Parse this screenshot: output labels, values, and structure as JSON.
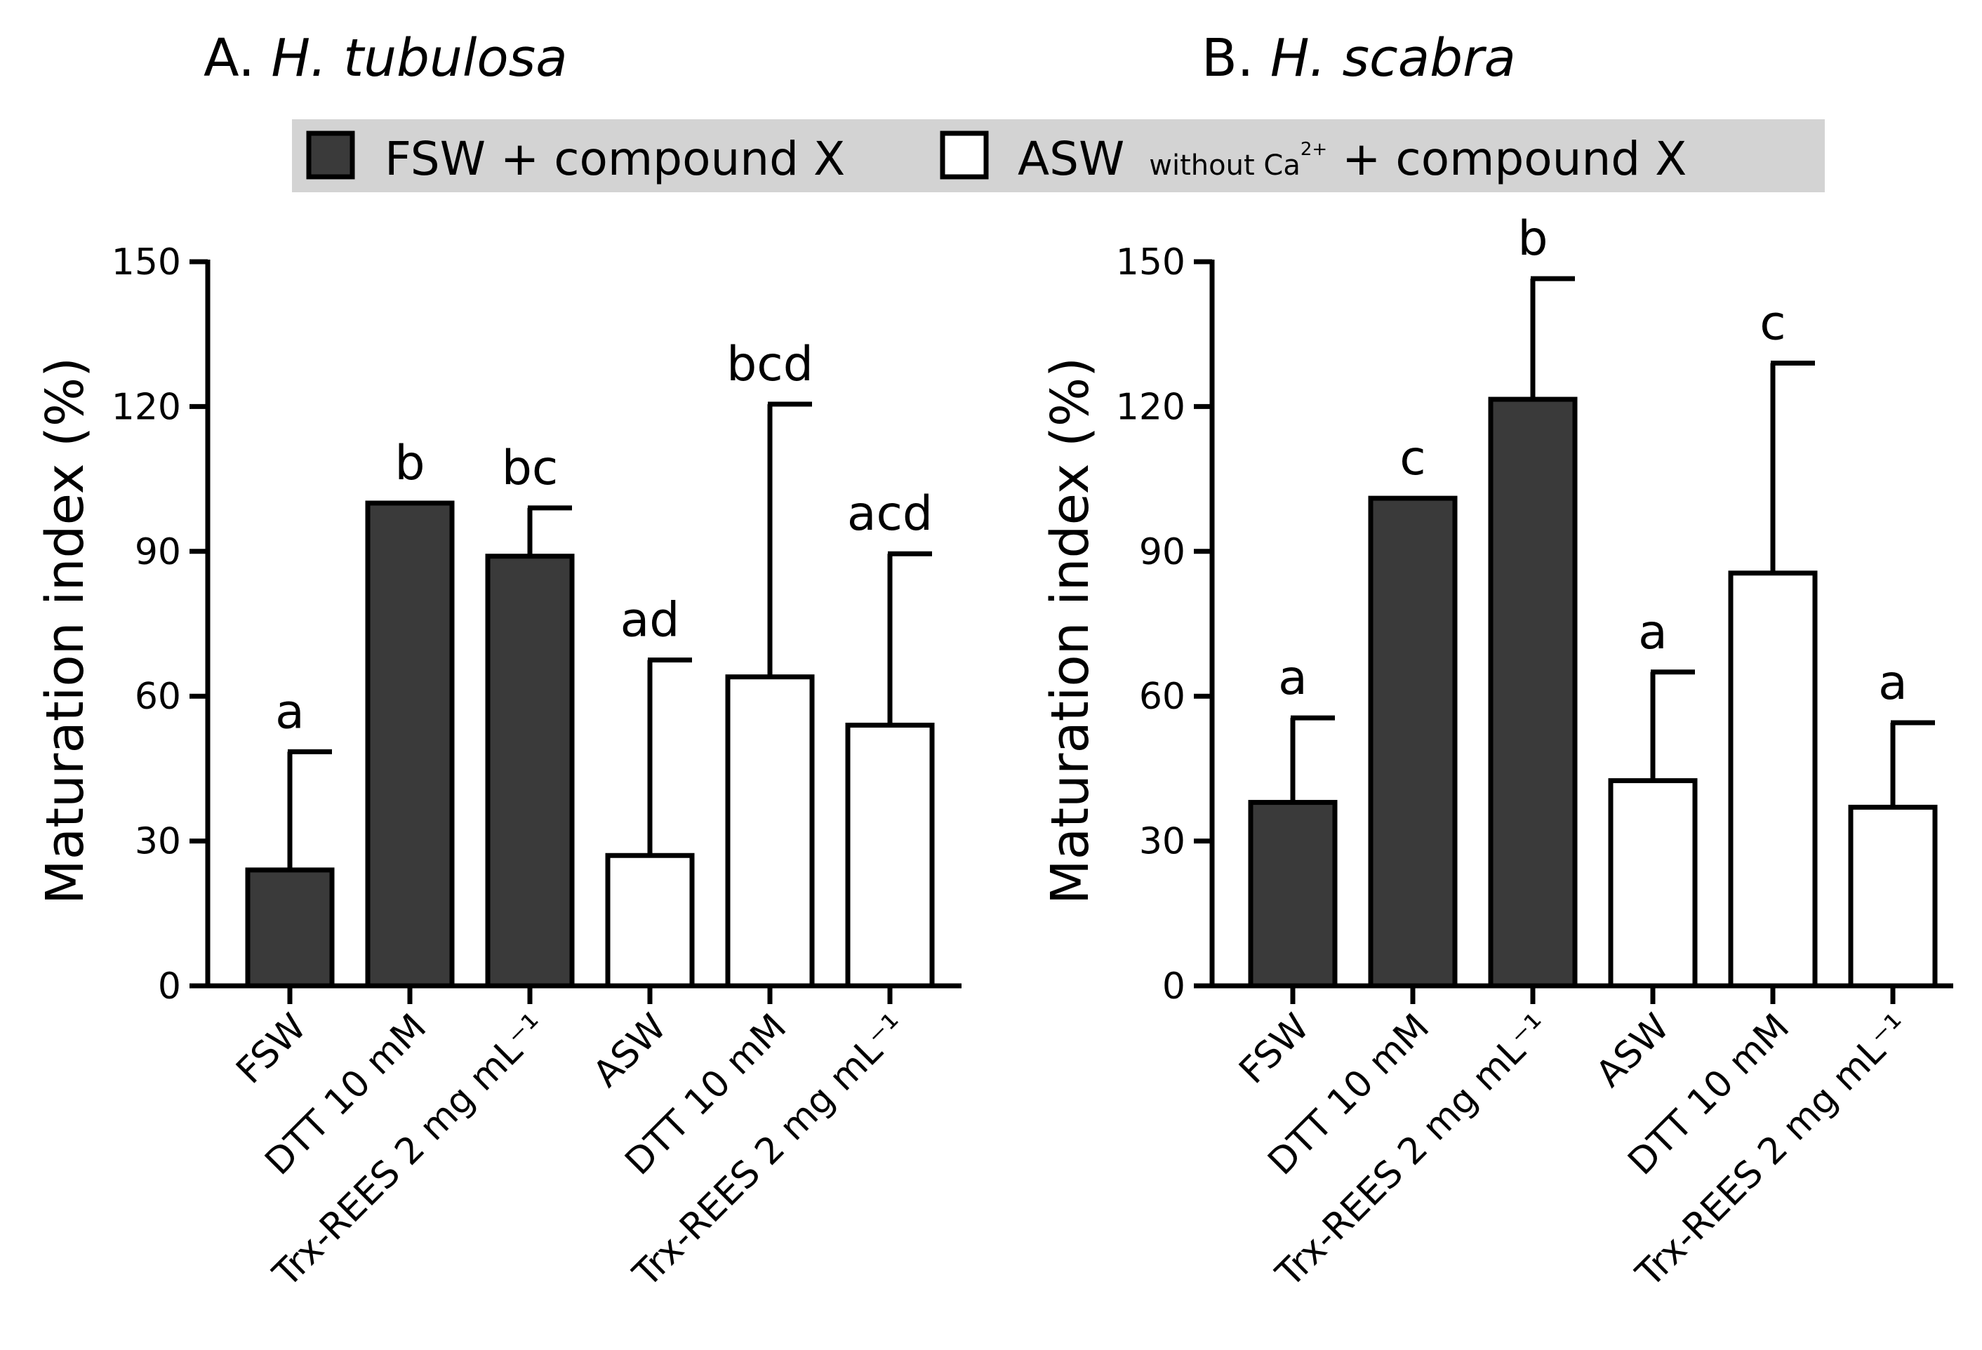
{
  "legend": {
    "item1_label": "FSW + compound X",
    "item2_label": "ASW",
    "item2_sub": "without Ca",
    "item2_sup": "2+",
    "item2_tail": " + compound X",
    "color_fsw": "#3a3a3a",
    "color_asw": "#ffffff",
    "background": "#d3d3d3"
  },
  "chart_data": [
    {
      "type": "bar",
      "panel": "A",
      "title_prefix": "A. ",
      "title_species": "H. tubulosa",
      "ylabel": "Maturation index (%)",
      "xlabel": "",
      "ylim": [
        0,
        150
      ],
      "yticks": [
        0,
        30,
        60,
        90,
        120,
        150
      ],
      "categories": [
        "FSW",
        "DTT 10 mM",
        "Trx-REES 2 mg mL⁻¹",
        "ASW",
        "DTT 10 mM",
        "Trx-REES 2 mg mL⁻¹"
      ],
      "groups": [
        "FSW + compound X",
        "FSW + compound X",
        "FSW + compound X",
        "ASW without Ca2+ + compound X",
        "ASW without Ca2+ + compound X",
        "ASW without Ca2+ + compound X"
      ],
      "values": [
        24,
        100,
        89,
        27,
        64,
        54
      ],
      "error_upper": [
        48.5,
        100,
        99,
        67.5,
        120.5,
        89.5
      ],
      "letters": [
        "a",
        "b",
        "bc",
        "ad",
        "bcd",
        "acd"
      ]
    },
    {
      "type": "bar",
      "panel": "B",
      "title_prefix": "B. ",
      "title_species": "H. scabra",
      "ylabel": "Maturation index (%)",
      "xlabel": "",
      "ylim": [
        0,
        150
      ],
      "yticks": [
        0,
        30,
        60,
        90,
        120,
        150
      ],
      "categories": [
        "FSW",
        "DTT 10 mM",
        "Trx-REES 2 mg mL⁻¹",
        "ASW",
        "DTT 10 mM",
        "Trx-REES 2 mg mL⁻¹"
      ],
      "groups": [
        "FSW + compound X",
        "FSW + compound X",
        "FSW + compound X",
        "ASW without Ca2+ + compound X",
        "ASW without Ca2+ + compound X",
        "ASW without Ca2+ + compound X"
      ],
      "values": [
        38,
        101,
        121.5,
        42.5,
        85.5,
        37
      ],
      "error_upper": [
        55.5,
        101,
        146.5,
        65,
        129,
        54.5
      ],
      "letters": [
        "a",
        "c",
        "b",
        "a",
        "c",
        "a"
      ]
    }
  ]
}
